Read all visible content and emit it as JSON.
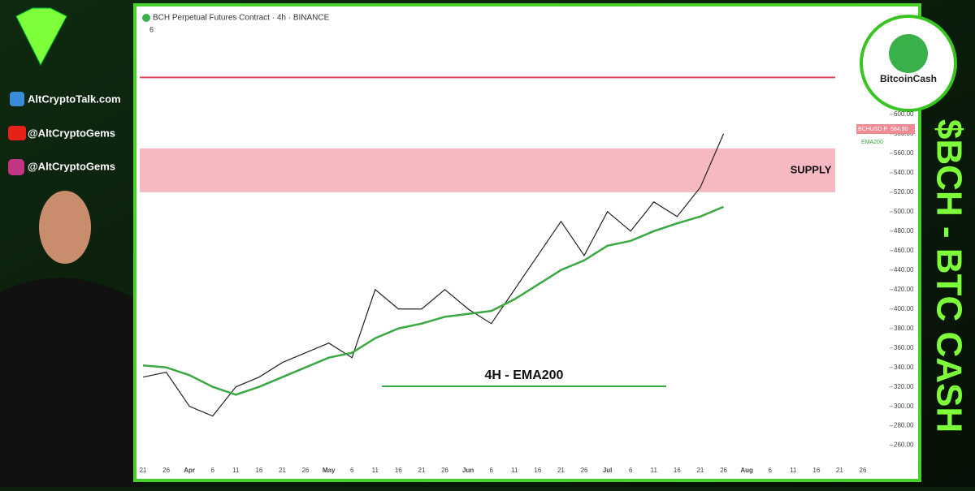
{
  "brand": {
    "site": "AltCryptoTalk.com",
    "youtube": "@AltCryptoGems",
    "instagram": "@AltCryptoGems",
    "coin": "BitcoinCash",
    "side": "$BCH - BTC CASH"
  },
  "chart_data": {
    "type": "line",
    "title": "BCH Perpetual Futures Contract · 4h · BINANCE",
    "indicators": "6",
    "symbol": "BCHUSD.P",
    "categories": [
      "21",
      "26",
      "Apr",
      "6",
      "11",
      "16",
      "21",
      "26",
      "May",
      "6",
      "11",
      "16",
      "21",
      "26",
      "Jun",
      "6",
      "11",
      "16",
      "21",
      "26",
      "Jul",
      "6",
      "11",
      "16",
      "21",
      "26",
      "Aug",
      "6",
      "11",
      "16",
      "21",
      "26"
    ],
    "series": [
      {
        "name": "BCHUSD.P",
        "color": "#222222",
        "values": [
          330,
          335,
          300,
          290,
          320,
          330,
          345,
          355,
          365,
          350,
          420,
          400,
          400,
          420,
          400,
          385,
          420,
          455,
          490,
          455,
          500,
          480,
          510,
          495,
          525,
          580,
          null,
          null,
          null,
          null,
          null,
          null
        ]
      },
      {
        "name": "EMA200",
        "color": "#3aa843",
        "values": [
          342,
          340,
          332,
          320,
          312,
          320,
          330,
          340,
          350,
          355,
          370,
          380,
          385,
          392,
          395,
          398,
          410,
          425,
          440,
          450,
          465,
          470,
          480,
          488,
          495,
          505,
          null,
          null,
          null,
          null,
          null,
          null
        ]
      }
    ],
    "ylim": [
      238,
      705
    ],
    "yticks": [
      {
        "value": 260,
        "label": "260.00"
      },
      {
        "value": 280,
        "label": "280.00"
      },
      {
        "value": 300,
        "label": "300.00"
      },
      {
        "value": 320,
        "label": "320.00"
      },
      {
        "value": 340,
        "label": "340.00"
      },
      {
        "value": 360,
        "label": "360.00"
      },
      {
        "value": 380,
        "label": "380.00"
      },
      {
        "value": 400,
        "label": "400.00"
      },
      {
        "value": 420,
        "label": "420.00"
      },
      {
        "value": 440,
        "label": "440.00"
      },
      {
        "value": 460,
        "label": "460.00"
      },
      {
        "value": 480,
        "label": "480.00"
      },
      {
        "value": 500,
        "label": "500.00"
      },
      {
        "value": 520,
        "label": "520.00"
      },
      {
        "value": 540,
        "label": "540.00"
      },
      {
        "value": 560,
        "label": "560.00"
      },
      {
        "value": 580,
        "label": "580.00"
      },
      {
        "value": 600,
        "label": "600.00"
      }
    ],
    "last_price": {
      "value": 584.9,
      "label": "584.90"
    },
    "resistance": 638,
    "supply_zone": [
      520,
      565
    ],
    "annotations": [
      "SUPPLY",
      "4H - EMA200"
    ]
  }
}
